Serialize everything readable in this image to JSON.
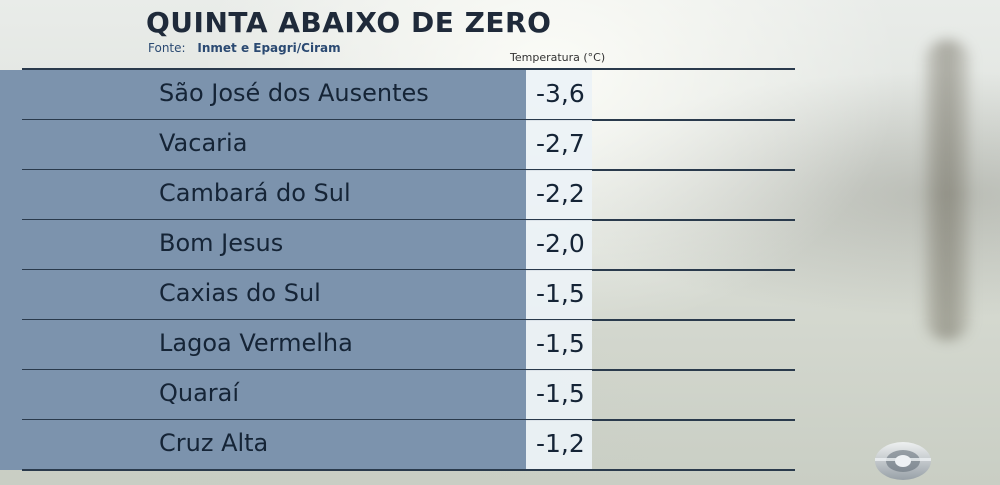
{
  "header": {
    "title": "QUINTA ABAIXO DE ZERO",
    "source_label": "Fonte:",
    "source_value": "Inmet e Epagri/Ciram",
    "column_header": "Temperatura (°C)"
  },
  "rows": [
    {
      "city": "São José dos Ausentes",
      "temp": "-3,6"
    },
    {
      "city": "Vacaria",
      "temp": "-2,7"
    },
    {
      "city": "Cambará do Sul",
      "temp": "-2,2"
    },
    {
      "city": "Bom Jesus",
      "temp": "-2,0"
    },
    {
      "city": "Caxias do Sul",
      "temp": "-1,5"
    },
    {
      "city": "Lagoa Vermelha",
      "temp": "-1,5"
    },
    {
      "city": "Quaraí",
      "temp": "-1,5"
    },
    {
      "city": "Cruz Alta",
      "temp": "-1,2"
    }
  ],
  "colors": {
    "name_column": "#7c93ad",
    "value_column": "#ecf2f6",
    "title": "#1f2a3a",
    "source": "#2b4a72"
  },
  "logo": {
    "icon": "broadcaster-logo-icon"
  }
}
